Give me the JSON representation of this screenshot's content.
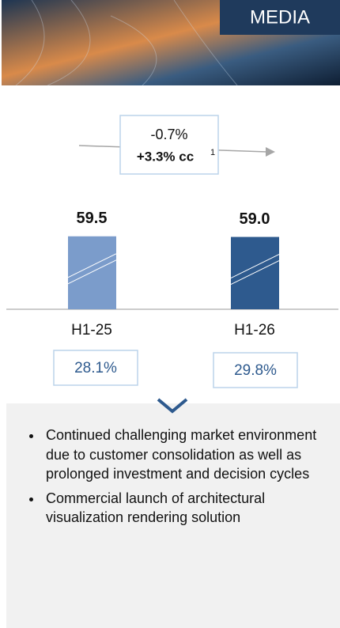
{
  "header": {
    "title": "MEDIA"
  },
  "chart_data": {
    "type": "bar",
    "categories": [
      "H1-25",
      "H1-26"
    ],
    "values": [
      59.5,
      59
    ],
    "value_labels": [
      "59.5",
      "59.0"
    ],
    "colors": [
      "#7b9ccb",
      "#2e5a8e"
    ],
    "ylim": [
      0,
      60
    ]
  },
  "growth": {
    "change": "-0.7%",
    "cc_change": "+3.3% cc",
    "footnote": "1"
  },
  "margins": [
    "28.1%",
    "29.8%"
  ],
  "bullets": [
    "Continued challenging market environment due to customer consolidation as well as prolonged investment and decision cycles",
    "Commercial launch of architectural visualization rendering solution"
  ]
}
